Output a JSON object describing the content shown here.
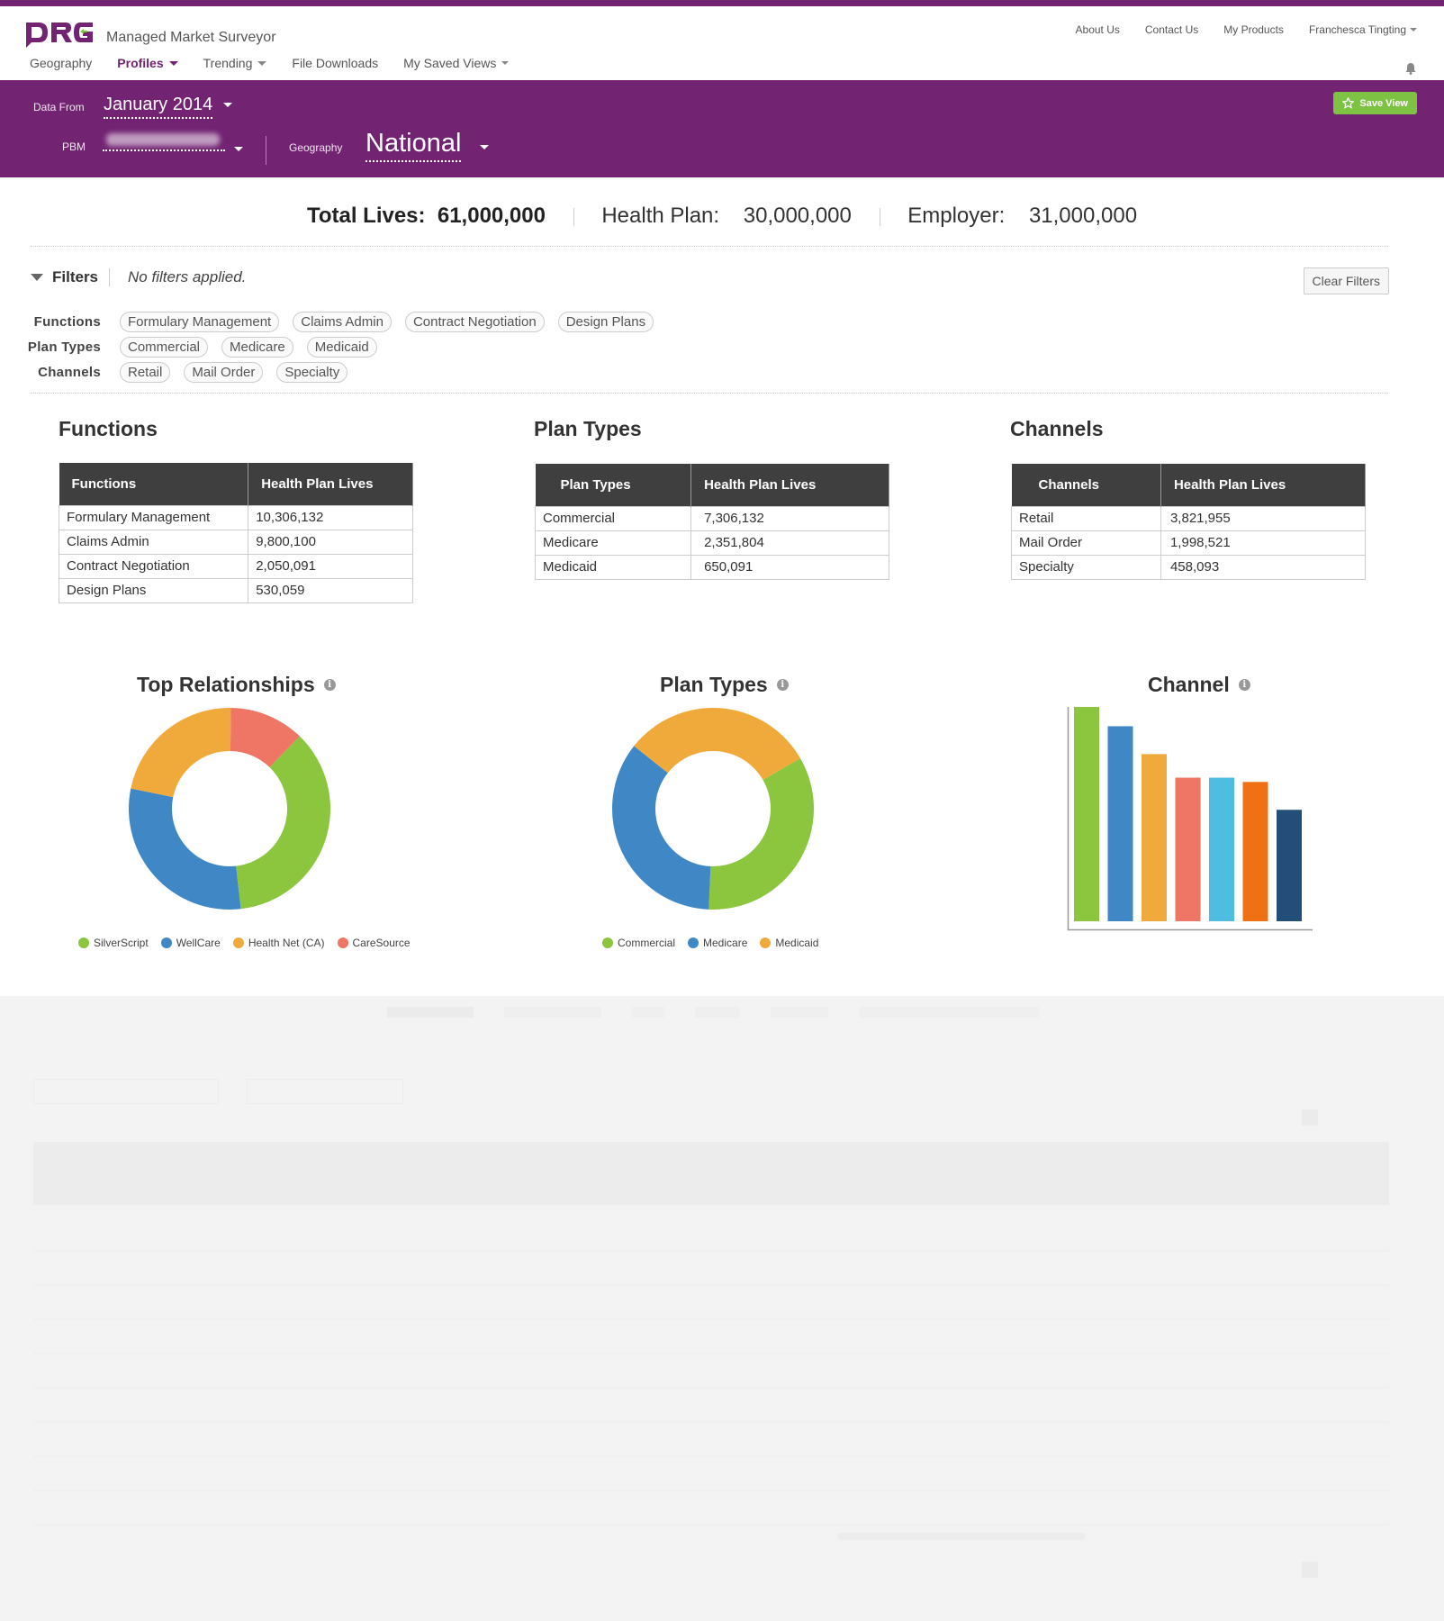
{
  "app": {
    "name": "Managed Market Surveyor",
    "logo_text": "DRG"
  },
  "top_links": [
    "About Us",
    "Contact Us",
    "My Products",
    "Franchesca Tingting"
  ],
  "nav": {
    "geography": "Geography",
    "profiles": "Profiles",
    "trending": "Trending",
    "file_downloads": "File Downloads",
    "saved_views": "My Saved Views"
  },
  "context": {
    "data_from_label": "Data From",
    "data_from_value": "January 2014",
    "pbm_label": "PBM",
    "geography_label": "Geography",
    "geography_value": "National",
    "save_view": "Save View"
  },
  "totals": {
    "total_label": "Total Lives:",
    "total_value": "61,000,000",
    "health_plan_label": "Health Plan:",
    "health_plan_value": "30,000,000",
    "employer_label": "Employer:",
    "employer_value": "31,000,000"
  },
  "filters": {
    "label": "Filters",
    "status": "No filters applied.",
    "clear": "Clear Filters",
    "groups": {
      "functions": {
        "label": "Functions",
        "chips": [
          "Formulary Management",
          "Claims Admin",
          "Contract Negotiation",
          "Design Plans"
        ]
      },
      "plan_types": {
        "label": "Plan Types",
        "chips": [
          "Commercial",
          "Medicare",
          "Medicaid"
        ]
      },
      "channels": {
        "label": "Channels",
        "chips": [
          "Retail",
          "Mail Order",
          "Specialty"
        ]
      }
    }
  },
  "tables": {
    "functions": {
      "title": "Functions",
      "headers": [
        "Functions",
        "Health Plan Lives"
      ],
      "rows": [
        [
          "Formulary Management",
          "10,306,132"
        ],
        [
          "Claims Admin",
          "9,800,100"
        ],
        [
          "Contract Negotiation",
          "2,050,091"
        ],
        [
          "Design Plans",
          "530,059"
        ]
      ]
    },
    "plan_types": {
      "title": "Plan Types",
      "headers": [
        "Plan Types",
        "Health Plan Lives"
      ],
      "rows": [
        [
          "Commercial",
          "7,306,132"
        ],
        [
          "Medicare",
          "2,351,804"
        ],
        [
          "Medicaid",
          "650,091"
        ]
      ]
    },
    "channels": {
      "title": "Channels",
      "headers": [
        "Channels",
        "Health Plan Lives"
      ],
      "rows": [
        [
          "Retail",
          "3,821,955"
        ],
        [
          "Mail Order",
          "1,998,521"
        ],
        [
          "Specialty",
          "458,093"
        ]
      ]
    }
  },
  "chart_data": [
    {
      "type": "pie",
      "title": "Top Relationships",
      "categories": [
        "SilverScript",
        "WellCare",
        "Health Net (CA)",
        "CareSource"
      ],
      "values": [
        36,
        30,
        22,
        12
      ],
      "colors": [
        "#8cc63f",
        "#3f88c5",
        "#f0aa3c",
        "#ef7565"
      ]
    },
    {
      "type": "pie",
      "title": "Plan Types",
      "categories": [
        "Commercial",
        "Medicare",
        "Medicaid"
      ],
      "values": [
        34,
        35,
        31
      ],
      "colors": [
        "#8cc63f",
        "#3f88c5",
        "#f0aa3c"
      ]
    },
    {
      "type": "bar",
      "title": "Channel",
      "values": [
        100,
        91,
        78,
        67,
        67,
        65,
        52
      ],
      "ylim": [
        0,
        100
      ],
      "colors": [
        "#8cc63f",
        "#3f88c5",
        "#f0aa3c",
        "#ef7565",
        "#4fbde0",
        "#f07014",
        "#234e7a"
      ]
    }
  ],
  "info_glyph": "i",
  "icons": [
    "bell-icon",
    "star-icon",
    "info-icon",
    "caret-down-icon"
  ]
}
